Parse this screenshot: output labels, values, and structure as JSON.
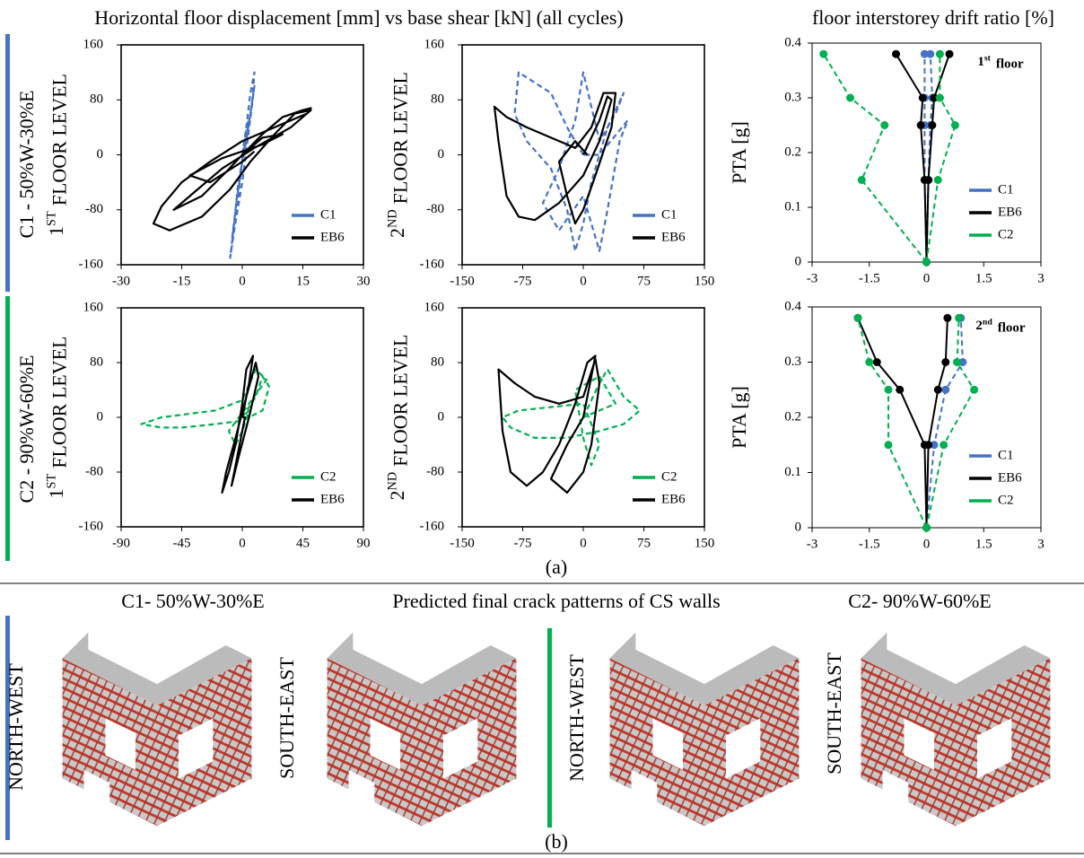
{
  "header": {
    "left_title": "Horizontal floor displacement [mm] vs base shear [kN] (all cycles)",
    "right_title": "floor interstorey drift ratio [%]"
  },
  "rows": [
    "C1 - 50%W-30%E",
    "C2 - 90%W-60%E"
  ],
  "chart_data": [
    {
      "type": "line",
      "ylabel": {
        "main": "1",
        "sup": "ST",
        "rest": "FLOOR LEVEL"
      },
      "xlim": [
        -30,
        30
      ],
      "xticks": [
        -30,
        -15,
        0,
        15,
        30
      ],
      "ylim": [
        -160,
        160
      ],
      "yticks": [
        -160,
        -80,
        0,
        80,
        160
      ],
      "legend": "lower right",
      "series": [
        {
          "name": "C1",
          "color": "#4472c4",
          "dash": true,
          "x": [
            0,
            1,
            2,
            3,
            2.5,
            1,
            -1,
            -2,
            -3,
            -2,
            0,
            1.5,
            3,
            2,
            0,
            -1.5,
            -2.5,
            -1,
            0.5,
            1.5,
            0
          ],
          "values": [
            0,
            40,
            90,
            120,
            80,
            20,
            -40,
            -100,
            -150,
            -110,
            -40,
            30,
            100,
            60,
            -10,
            -70,
            -120,
            -60,
            20,
            50,
            0
          ]
        },
        {
          "name": "EB6",
          "color": "#000000",
          "dash": false,
          "x": [
            0,
            5,
            10,
            15,
            17,
            16,
            10,
            0,
            -8,
            -15,
            -20,
            -22,
            -18,
            -10,
            -3,
            2,
            8,
            13,
            17,
            12,
            3,
            -5,
            -12,
            -17,
            -10,
            -4,
            0,
            5,
            10,
            5,
            -5,
            -13,
            -8,
            0,
            3
          ],
          "values": [
            0,
            30,
            55,
            65,
            68,
            60,
            45,
            20,
            -10,
            -40,
            -75,
            -100,
            -110,
            -90,
            -50,
            -10,
            30,
            60,
            65,
            40,
            10,
            -20,
            -55,
            -80,
            -60,
            -25,
            0,
            25,
            30,
            15,
            -5,
            -30,
            -40,
            -10,
            5
          ]
        }
      ]
    },
    {
      "type": "line",
      "ylabel": {
        "main": "2",
        "sup": "ND",
        "rest": "FLOOR LEVEL"
      },
      "xlim": [
        -150,
        150
      ],
      "xticks": [
        -150,
        -75,
        0,
        75,
        150
      ],
      "ylim": [
        -160,
        160
      ],
      "yticks": [
        -160,
        -80,
        0,
        80,
        160
      ],
      "legend": "lower right",
      "series": [
        {
          "name": "C1",
          "color": "#4472c4",
          "dash": true,
          "x": [
            0,
            -20,
            -40,
            -80,
            -85,
            -70,
            -40,
            -20,
            -10,
            0,
            10,
            30,
            50,
            40,
            20,
            0,
            -10,
            -30,
            -50,
            -30,
            0,
            20,
            30,
            45,
            55,
            20,
            0
          ],
          "values": [
            0,
            40,
            90,
            120,
            60,
            20,
            -20,
            -80,
            -140,
            -100,
            -40,
            40,
            90,
            60,
            20,
            120,
            50,
            -20,
            -70,
            -110,
            -60,
            -140,
            -80,
            20,
            50,
            0,
            0
          ]
        },
        {
          "name": "EB6",
          "color": "#000000",
          "dash": false,
          "x": [
            0,
            20,
            30,
            35,
            20,
            0,
            -30,
            -60,
            -80,
            -95,
            -105,
            -110,
            -95,
            -70,
            -40,
            -10,
            10,
            25,
            40,
            35,
            15,
            0,
            -10,
            -20,
            -30,
            -10,
            5
          ],
          "values": [
            0,
            50,
            85,
            80,
            20,
            -30,
            -70,
            -95,
            -90,
            -60,
            20,
            70,
            55,
            40,
            25,
            10,
            40,
            90,
            90,
            40,
            -30,
            -80,
            -100,
            -60,
            -10,
            20,
            0
          ]
        }
      ]
    },
    {
      "type": "line",
      "ylabel": {
        "main": "1",
        "sup": "ST",
        "rest": "FLOOR LEVEL"
      },
      "xlim": [
        -90,
        90
      ],
      "xticks": [
        -90,
        -45,
        0,
        45,
        90
      ],
      "ylim": [
        -160,
        160
      ],
      "yticks": [
        -160,
        -80,
        0,
        80,
        160
      ],
      "legend": "lower right",
      "series": [
        {
          "name": "C2",
          "color": "#00b050",
          "dash": true,
          "x": [
            0,
            10,
            15,
            20,
            15,
            0,
            -20,
            -45,
            -60,
            -75,
            -60,
            -40,
            -20,
            0,
            10,
            18,
            5,
            -10,
            -5,
            0,
            5,
            0
          ],
          "values": [
            0,
            30,
            60,
            45,
            10,
            -5,
            -10,
            -15,
            -15,
            -10,
            0,
            5,
            10,
            25,
            70,
            55,
            20,
            -20,
            -40,
            -20,
            10,
            0
          ]
        },
        {
          "name": "EB6",
          "color": "#000000",
          "dash": false,
          "x": [
            0,
            5,
            8,
            3,
            0,
            -5,
            -10,
            -15,
            -12,
            -5,
            3,
            10,
            12,
            5,
            -3,
            -8,
            -3,
            2,
            0
          ],
          "values": [
            0,
            50,
            90,
            70,
            20,
            -40,
            -80,
            -110,
            -80,
            -30,
            30,
            80,
            60,
            0,
            -60,
            -100,
            -50,
            0,
            0
          ]
        }
      ]
    },
    {
      "type": "line",
      "ylabel": {
        "main": "2",
        "sup": "ND",
        "rest": "FLOOR LEVEL"
      },
      "xlim": [
        -150,
        150
      ],
      "xticks": [
        -150,
        -75,
        0,
        75,
        150
      ],
      "ylim": [
        -160,
        160
      ],
      "yticks": [
        -160,
        -80,
        0,
        80,
        160
      ],
      "legend": "lower right",
      "series": [
        {
          "name": "C2",
          "color": "#00b050",
          "dash": true,
          "x": [
            0,
            20,
            30,
            50,
            70,
            50,
            20,
            -20,
            -60,
            -90,
            -100,
            -80,
            -40,
            0,
            20,
            10,
            0,
            -10,
            20,
            40,
            0
          ],
          "values": [
            0,
            50,
            70,
            30,
            10,
            -10,
            -20,
            -30,
            -30,
            -15,
            0,
            10,
            15,
            20,
            -40,
            -70,
            -30,
            40,
            60,
            20,
            0
          ]
        },
        {
          "name": "EB6",
          "color": "#000000",
          "dash": false,
          "x": [
            0,
            10,
            15,
            5,
            -10,
            -30,
            -50,
            -70,
            -90,
            -100,
            -105,
            -85,
            -60,
            -30,
            0,
            15,
            20,
            10,
            0,
            -20,
            -40,
            -20,
            0
          ],
          "values": [
            0,
            60,
            90,
            80,
            20,
            -40,
            -80,
            -100,
            -80,
            -20,
            70,
            50,
            30,
            20,
            30,
            85,
            50,
            -40,
            -80,
            -110,
            -90,
            -40,
            0
          ]
        }
      ]
    },
    {
      "type": "line",
      "ylabel": "PTA [g]",
      "annotation": {
        "main": "1",
        "sup": "st",
        "rest": "floor"
      },
      "xlim": [
        -3,
        3
      ],
      "xticks": [
        -3,
        -1.5,
        0,
        1.5,
        3
      ],
      "ylim": [
        0,
        0.4
      ],
      "yticks": [
        0,
        0.1,
        0.2,
        0.3,
        0.4
      ],
      "legend": "lower right",
      "markers": true,
      "series": [
        {
          "name": "C1",
          "color": "#4472c4",
          "dash": true,
          "x": [
            0,
            -0.05,
            -0.05,
            -0.05,
            -0.05,
            null,
            0,
            0.05,
            0.1,
            0.15,
            0.1
          ],
          "values": [
            0,
            0.15,
            0.25,
            0.3,
            0.38,
            null,
            0,
            0.15,
            0.25,
            0.3,
            0.38
          ]
        },
        {
          "name": "EB6",
          "color": "#000000",
          "dash": false,
          "x": [
            0,
            -0.05,
            -0.15,
            -0.1,
            -0.8,
            null,
            0,
            0.05,
            0.15,
            0.2,
            0.6
          ],
          "values": [
            0,
            0.15,
            0.25,
            0.3,
            0.38,
            null,
            0,
            0.15,
            0.25,
            0.3,
            0.38
          ]
        },
        {
          "name": "C2",
          "color": "#00b050",
          "dash": true,
          "x": [
            0,
            -1.7,
            -1.1,
            -2,
            -2.7,
            null,
            0,
            0.3,
            0.75,
            0.35,
            0.35
          ],
          "values": [
            0,
            0.15,
            0.25,
            0.3,
            0.38,
            null,
            0,
            0.15,
            0.25,
            0.3,
            0.38
          ]
        }
      ]
    },
    {
      "type": "line",
      "ylabel": "PTA [g]",
      "annotation": {
        "main": "2",
        "sup": "nd",
        "rest": "floor"
      },
      "xlim": [
        -3,
        3
      ],
      "xticks": [
        -3,
        -1.5,
        0,
        1.5,
        3
      ],
      "ylim": [
        0,
        0.4
      ],
      "yticks": [
        0,
        0.1,
        0.2,
        0.3,
        0.4
      ],
      "legend": "lower right",
      "markers": true,
      "series": [
        {
          "name": "C1",
          "color": "#4472c4",
          "dash": true,
          "x": [
            0,
            0.2,
            0.5,
            0.95,
            0.9
          ],
          "values": [
            0,
            0.15,
            0.25,
            0.3,
            0.38
          ]
        },
        {
          "name": "EB6",
          "color": "#000000",
          "dash": false,
          "x": [
            0,
            -0.05,
            -0.7,
            -1.3,
            -1.8,
            null,
            0,
            0.05,
            0.3,
            0.5,
            0.55
          ],
          "values": [
            0,
            0.15,
            0.25,
            0.3,
            0.38,
            null,
            0,
            0.15,
            0.25,
            0.3,
            0.38
          ]
        },
        {
          "name": "C2",
          "color": "#00b050",
          "dash": true,
          "x": [
            0,
            -1,
            -1,
            -1.5,
            -1.8,
            null,
            0,
            0.45,
            1.25,
            0.8,
            0.85
          ],
          "values": [
            0,
            0.15,
            0.25,
            0.3,
            0.38,
            null,
            0,
            0.15,
            0.25,
            0.3,
            0.38
          ]
        }
      ]
    }
  ],
  "panel_a_label": "(a)",
  "panel_b": {
    "title": "Predicted final crack patterns of CS walls",
    "case_titles": [
      "C1- 50%W-30%E",
      "C2- 90%W-60%E"
    ],
    "views": [
      "NORTH-WEST",
      "SOUTH-EAST",
      "NORTH-WEST",
      "SOUTH-EAST"
    ],
    "label": "(b)"
  }
}
